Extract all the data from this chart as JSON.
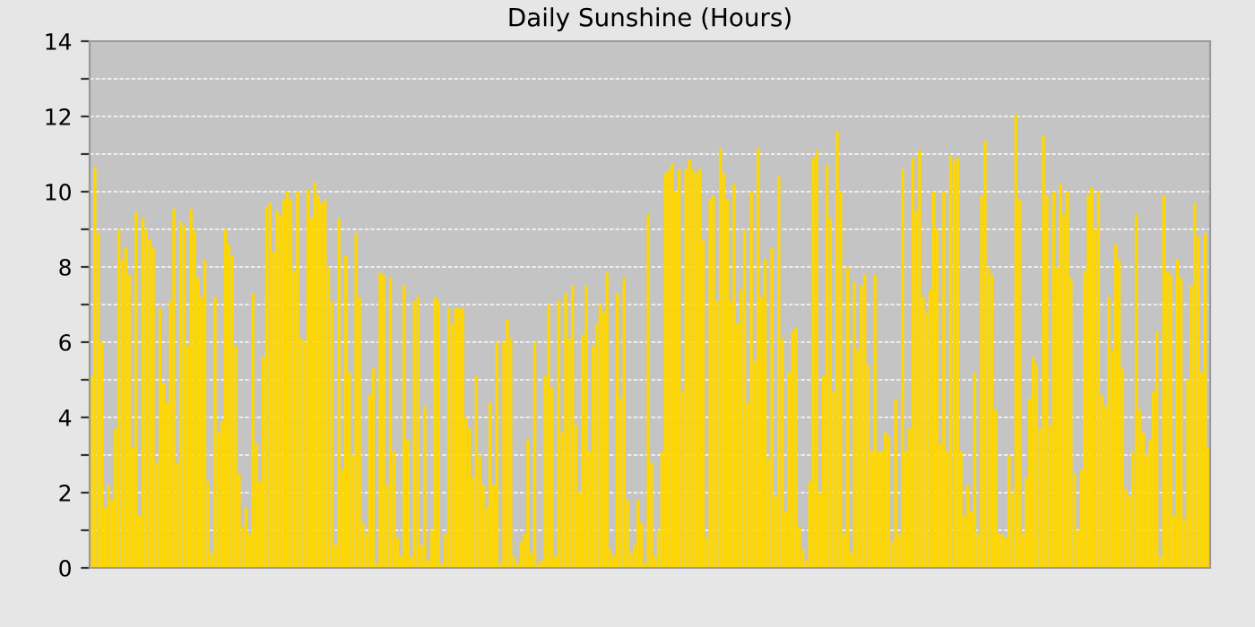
{
  "chart_data": {
    "type": "bar",
    "title": "Daily Sunshine (Hours)",
    "values": [
      5.1,
      10.65,
      8.9,
      6.0,
      1.6,
      2.2,
      1.8,
      3.7,
      9.0,
      8.2,
      8.5,
      7.8,
      3.2,
      9.45,
      1.4,
      9.3,
      9.0,
      8.75,
      8.5,
      2.8,
      6.9,
      4.9,
      4.4,
      7.1,
      9.55,
      2.8,
      9.2,
      9.1,
      5.9,
      9.55,
      9.0,
      7.7,
      7.2,
      8.2,
      2.3,
      0.4,
      7.2,
      3.6,
      3.9,
      9.0,
      8.6,
      8.3,
      5.9,
      2.5,
      1.1,
      1.6,
      0.9,
      7.3,
      3.3,
      2.3,
      5.6,
      9.6,
      9.7,
      8.4,
      9.5,
      9.35,
      9.8,
      10.0,
      9.8,
      7.9,
      10.0,
      6.1,
      6.0,
      10.05,
      9.3,
      10.25,
      9.9,
      9.7,
      9.8,
      8.0,
      7.1,
      0.6,
      9.3,
      2.6,
      8.3,
      5.2,
      3.0,
      8.9,
      7.2,
      1.2,
      0.9,
      4.6,
      5.3,
      0.1,
      7.85,
      7.8,
      2.2,
      7.7,
      3.1,
      0.8,
      0.3,
      7.5,
      3.4,
      0.3,
      7.1,
      7.2,
      0.6,
      4.3,
      0.2,
      1.0,
      7.2,
      7.1,
      0.1,
      0.9,
      6.9,
      6.5,
      6.9,
      6.9,
      6.9,
      4.0,
      3.7,
      2.4,
      5.1,
      3.0,
      2.2,
      1.6,
      4.4,
      2.2,
      6.0,
      0.1,
      6.0,
      6.6,
      6.1,
      0.3,
      0.1,
      0.7,
      0.9,
      3.4,
      0.4,
      6.0,
      0.1,
      0.2,
      5.1,
      7.0,
      4.8,
      0.3,
      7.1,
      3.6,
      7.3,
      6.1,
      7.5,
      3.8,
      2.0,
      6.2,
      7.5,
      3.1,
      5.9,
      6.5,
      7.0,
      6.8,
      7.85,
      0.5,
      0.3,
      7.3,
      4.5,
      7.7,
      1.8,
      0.4,
      0.6,
      1.8,
      1.2,
      0.1,
      9.4,
      2.8,
      0.3,
      1.0,
      3.1,
      10.5,
      10.6,
      10.75,
      10.0,
      10.6,
      4.7,
      10.6,
      10.85,
      10.6,
      10.5,
      10.6,
      8.7,
      0.8,
      9.8,
      9.9,
      7.1,
      11.15,
      10.5,
      9.8,
      7.1,
      10.2,
      6.5,
      7.4,
      9.0,
      4.4,
      10.0,
      5.5,
      11.15,
      7.2,
      8.2,
      2.9,
      8.5,
      1.9,
      10.4,
      6.1,
      1.5,
      5.2,
      6.3,
      6.4,
      1.1,
      0.5,
      0.2,
      2.3,
      10.9,
      11.1,
      2.0,
      5.1,
      10.7,
      9.3,
      4.7,
      11.6,
      10.0,
      0.9,
      8.0,
      0.4,
      7.6,
      5.8,
      7.5,
      7.8,
      5.4,
      3.1,
      7.8,
      3.1,
      3.1,
      3.6,
      3.5,
      0.7,
      4.5,
      0.9,
      10.6,
      3.1,
      3.7,
      10.9,
      9.5,
      11.1,
      7.2,
      6.8,
      7.4,
      10.0,
      9.0,
      3.3,
      10.0,
      3.1,
      10.95,
      10.8,
      10.9,
      3.1,
      1.4,
      2.2,
      1.5,
      5.2,
      0.9,
      9.9,
      11.35,
      8.0,
      7.8,
      4.2,
      0.9,
      0.9,
      0.8,
      3.0,
      2.0,
      12.05,
      9.8,
      0.9,
      2.4,
      4.5,
      5.6,
      5.4,
      3.7,
      11.5,
      9.9,
      3.8,
      10.0,
      8.0,
      10.2,
      9.4,
      10.0,
      7.7,
      2.5,
      1.0,
      2.6,
      7.9,
      9.9,
      10.1,
      9.0,
      10.0,
      4.6,
      4.3,
      7.2,
      5.8,
      8.6,
      8.2,
      5.3,
      2.1,
      1.9,
      3.1,
      9.4,
      4.2,
      3.6,
      3.0,
      3.4,
      4.7,
      6.3,
      0.3,
      9.9,
      7.9,
      7.8,
      1.4,
      8.2,
      7.7,
      1.3,
      5.0,
      7.5,
      9.7,
      8.8,
      5.2,
      8.9,
      3.2
    ],
    "color": "#ffd700",
    "ylim": [
      0,
      14
    ],
    "yticks": [
      0,
      {
        "value": 1,
        "label": null
      },
      2,
      {
        "value": 3,
        "label": null
      },
      4,
      {
        "value": 5,
        "label": null
      },
      6,
      {
        "value": 7,
        "label": null
      },
      8,
      {
        "value": 9,
        "label": null
      },
      10,
      {
        "value": 11,
        "label": null
      },
      12,
      {
        "value": 13,
        "label": null
      },
      14
    ],
    "grid": true,
    "tick_labels": "y"
  }
}
